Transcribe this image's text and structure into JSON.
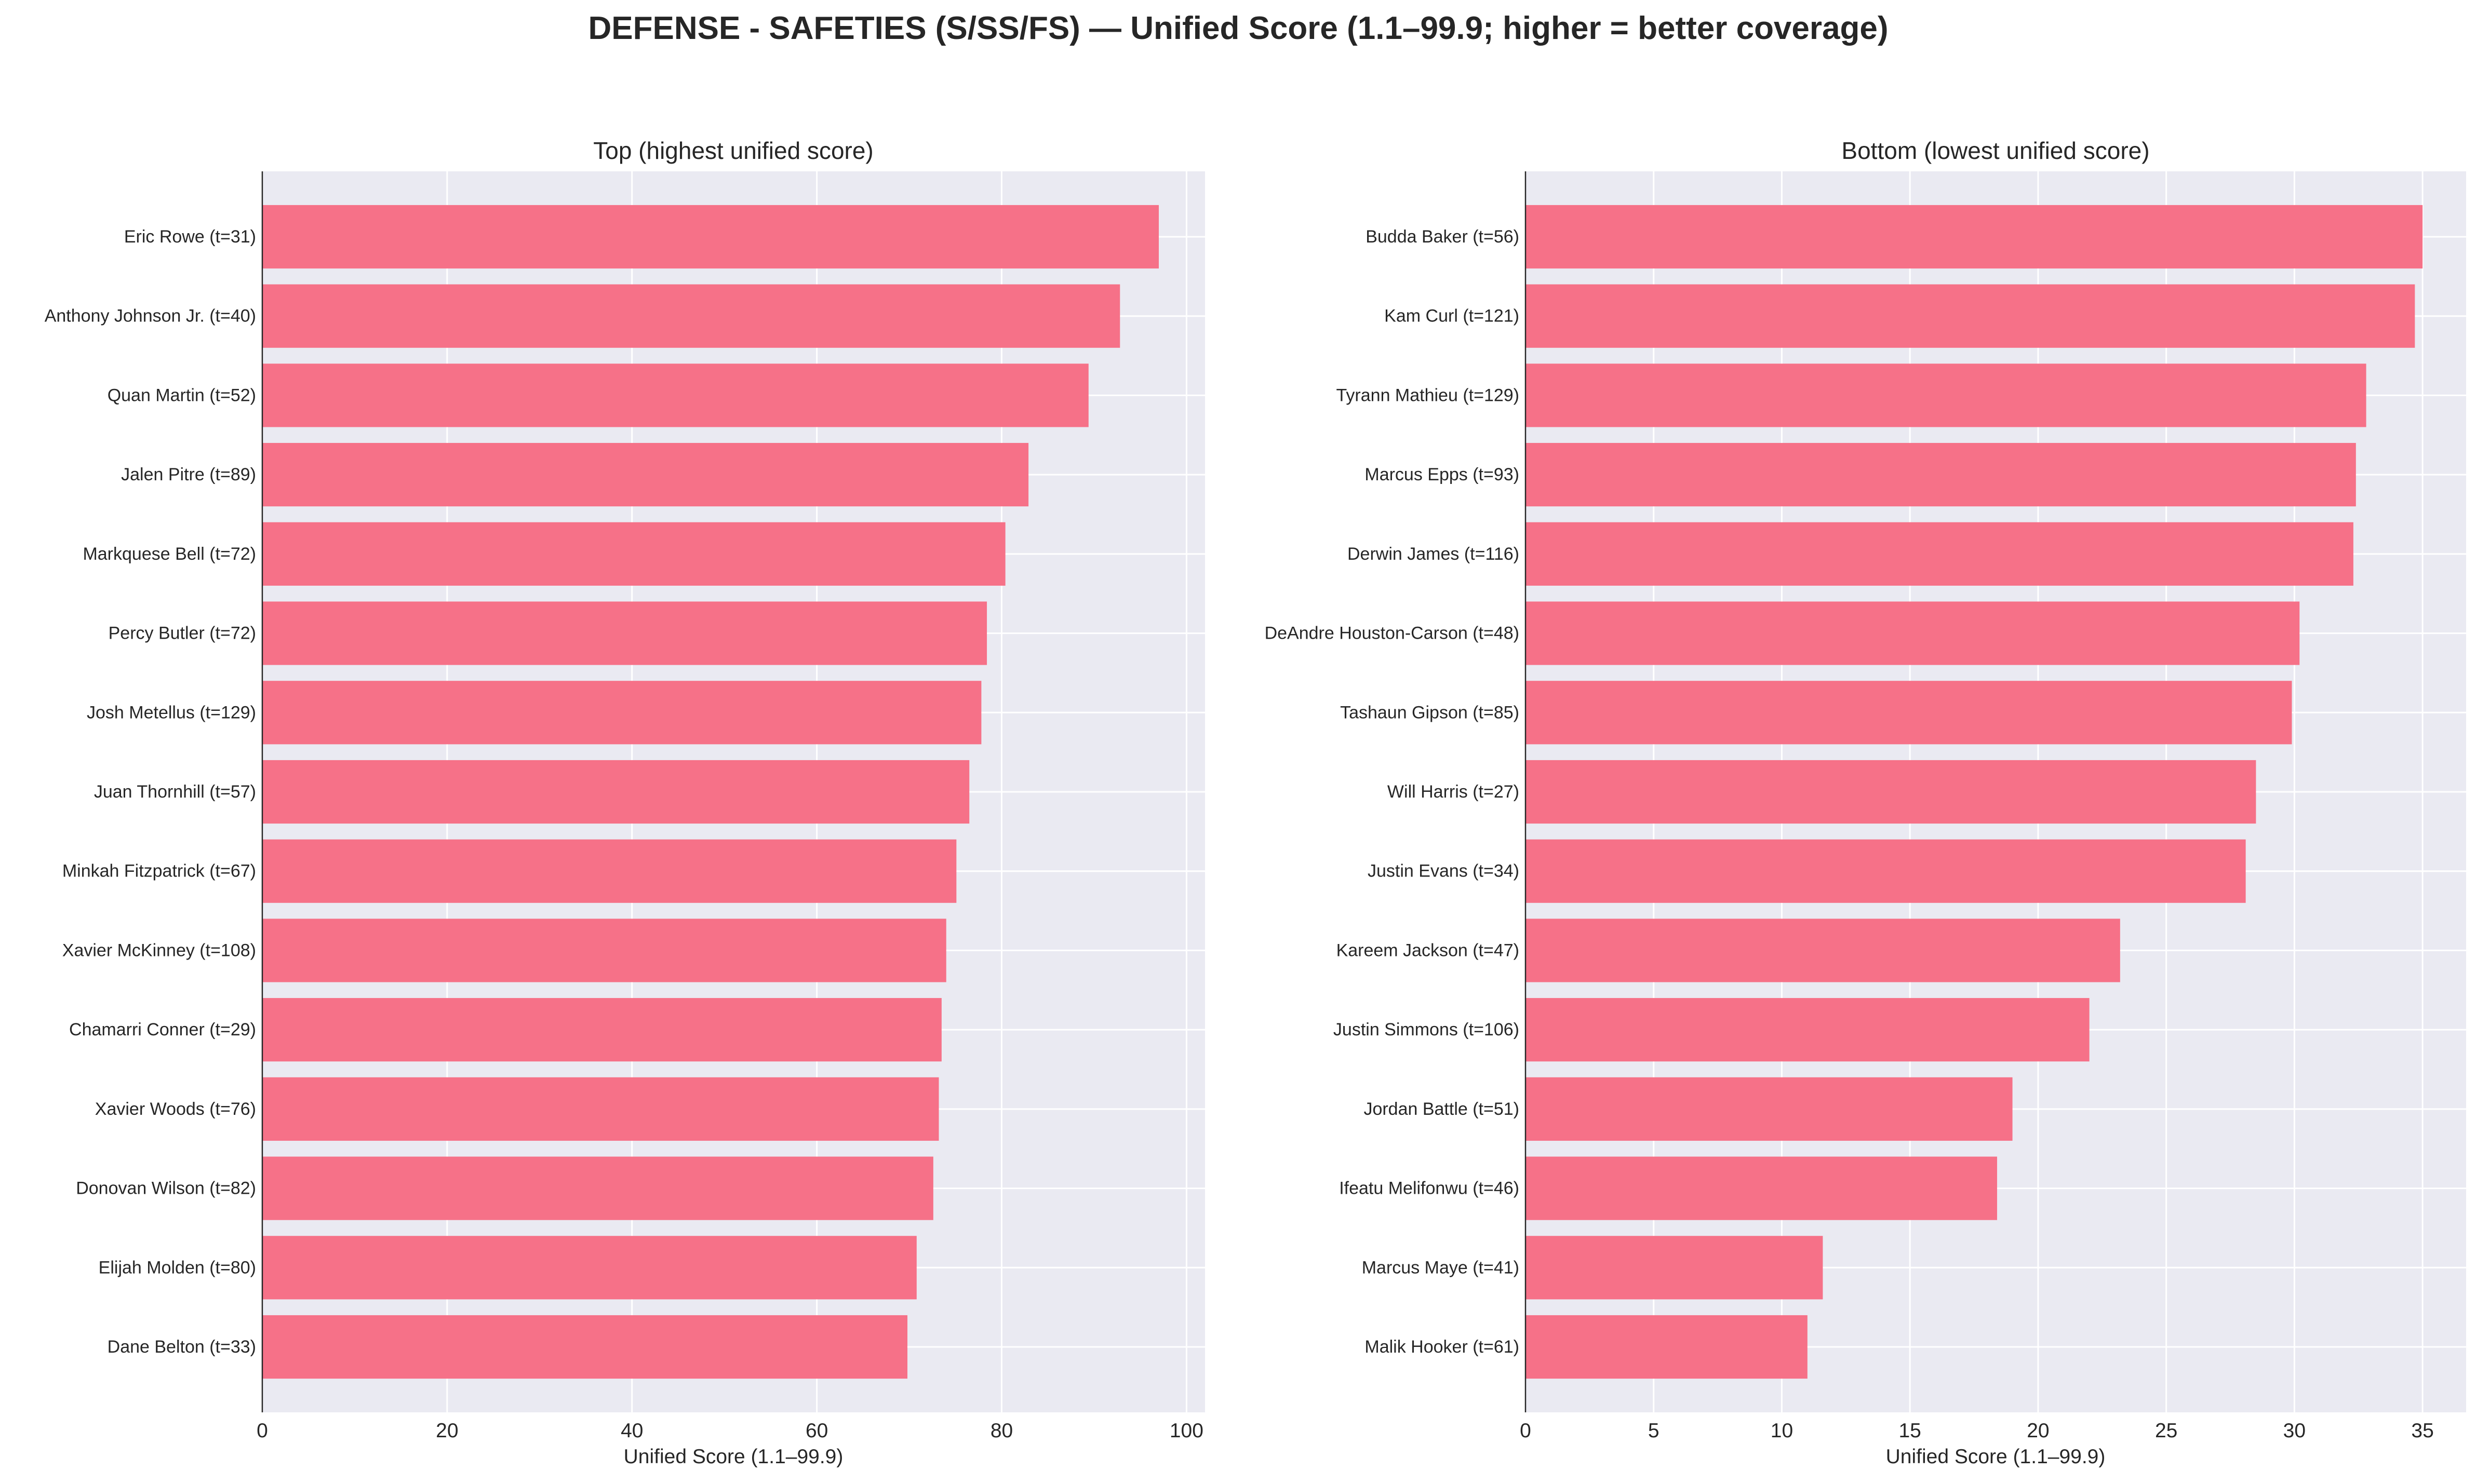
{
  "suptitle": "DEFENSE - SAFETIES (S/SS/FS) — Unified Score (1.1–99.9; higher = better coverage)",
  "colors": {
    "bar": "#f67188",
    "plot_bg": "#eaeaf2",
    "grid": "#ffffff",
    "axis": "#262626"
  },
  "chart_data": [
    {
      "type": "bar",
      "orientation": "horizontal",
      "title": "Top (highest unified score)",
      "xlabel": "Unified Score (1.1–99.9)",
      "xlim": [
        0,
        102
      ],
      "xticks": [
        0,
        20,
        40,
        60,
        80,
        100
      ],
      "grid": true,
      "categories": [
        "Eric Rowe  (t=31)",
        "Anthony Johnson Jr.  (t=40)",
        "Quan Martin  (t=52)",
        "Jalen Pitre  (t=89)",
        "Markquese Bell  (t=72)",
        "Percy Butler  (t=72)",
        "Josh Metellus  (t=129)",
        "Juan Thornhill  (t=57)",
        "Minkah Fitzpatrick  (t=67)",
        "Xavier McKinney  (t=108)",
        "Chamarri Conner  (t=29)",
        "Xavier Woods  (t=76)",
        "Donovan Wilson  (t=82)",
        "Elijah Molden  (t=80)",
        "Dane Belton  (t=33)"
      ],
      "values": [
        97.0,
        92.8,
        89.4,
        82.9,
        80.4,
        78.4,
        77.8,
        76.5,
        75.1,
        74.0,
        73.5,
        73.2,
        72.6,
        70.8,
        69.8
      ]
    },
    {
      "type": "bar",
      "orientation": "horizontal",
      "title": "Bottom (lowest unified score)",
      "xlabel": "Unified Score (1.1–99.9)",
      "xlim": [
        0,
        36.7
      ],
      "xticks": [
        0,
        5,
        10,
        15,
        20,
        25,
        30,
        35
      ],
      "grid": true,
      "categories": [
        "Budda Baker  (t=56)",
        "Kam Curl  (t=121)",
        "Tyrann Mathieu  (t=129)",
        "Marcus Epps  (t=93)",
        "Derwin James  (t=116)",
        "DeAndre Houston-Carson  (t=48)",
        "Tashaun Gipson  (t=85)",
        "Will Harris  (t=27)",
        "Justin Evans  (t=34)",
        "Kareem Jackson  (t=47)",
        "Justin Simmons  (t=106)",
        "Jordan Battle  (t=51)",
        "Ifeatu Melifonwu  (t=46)",
        "Marcus Maye  (t=41)",
        "Malik Hooker  (t=61)"
      ],
      "values": [
        35.0,
        34.7,
        32.8,
        32.4,
        32.3,
        30.2,
        29.9,
        28.5,
        28.1,
        23.2,
        22.0,
        19.0,
        18.4,
        11.6,
        11.0
      ]
    }
  ]
}
